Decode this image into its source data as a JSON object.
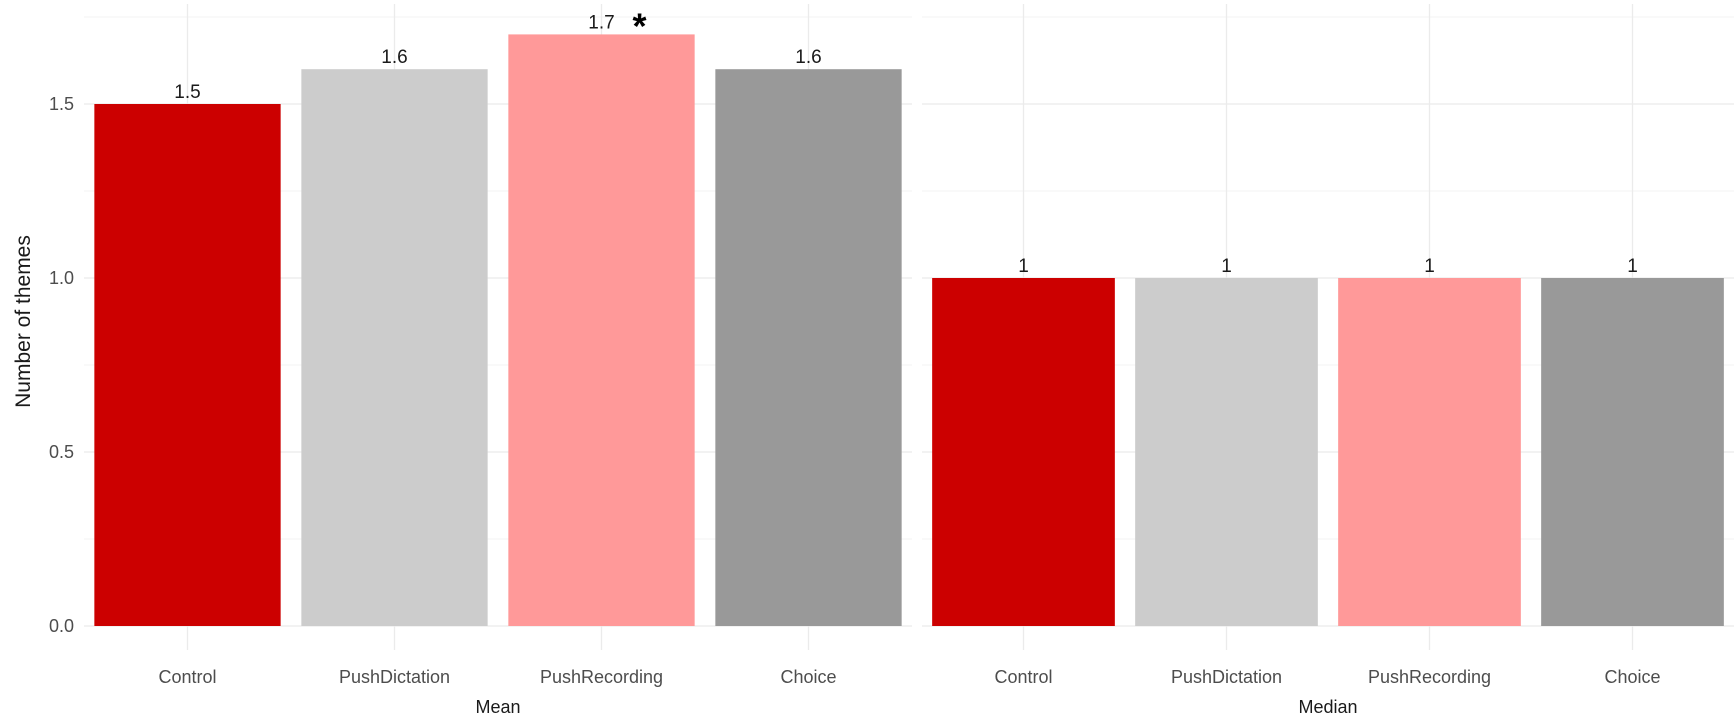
{
  "chart_data": {
    "type": "bar",
    "ylabel": "Number of themes",
    "ylim": [
      0,
      1.75
    ],
    "yticks": [
      "0.0",
      "0.5",
      "1.0",
      "1.5"
    ],
    "ytick_values": [
      0,
      0.5,
      1.0,
      1.5
    ],
    "grid": true,
    "legend": "none",
    "categories": [
      "Control",
      "PushDictation",
      "PushRecording",
      "Choice"
    ],
    "colors": [
      "#cc0000",
      "#cccccc",
      "#ff9999",
      "#999999"
    ],
    "panels": [
      {
        "xlabel": "Mean",
        "values": [
          1.5,
          1.6,
          1.7,
          1.6
        ],
        "labels": [
          "1.5",
          "1.6",
          "1.7",
          "1.6"
        ],
        "annotations": [
          "",
          "",
          "*",
          ""
        ]
      },
      {
        "xlabel": "Median",
        "values": [
          1,
          1,
          1,
          1
        ],
        "labels": [
          "1",
          "1",
          "1",
          "1"
        ],
        "annotations": [
          "",
          "",
          "",
          ""
        ]
      }
    ]
  }
}
